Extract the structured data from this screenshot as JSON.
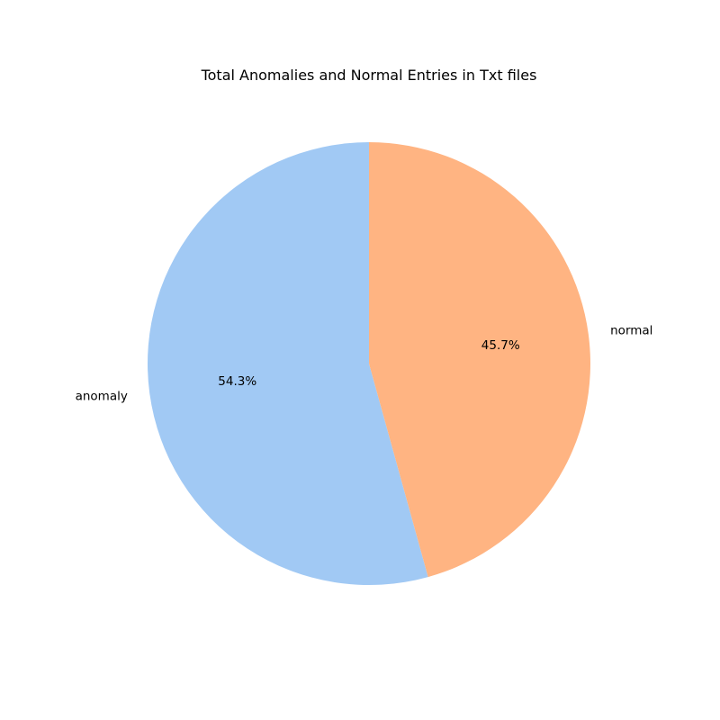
{
  "chart_data": {
    "type": "pie",
    "title": "Total Anomalies and Normal Entries in Txt files",
    "start_angle_deg": 90,
    "direction": "counterclockwise",
    "legend": "none",
    "slices": [
      {
        "label": "anomaly",
        "value": 54.3,
        "pct_label": "54.3%",
        "color": "#a1c9f4"
      },
      {
        "label": "normal",
        "value": 45.7,
        "pct_label": "45.7%",
        "color": "#ffb482"
      }
    ]
  }
}
